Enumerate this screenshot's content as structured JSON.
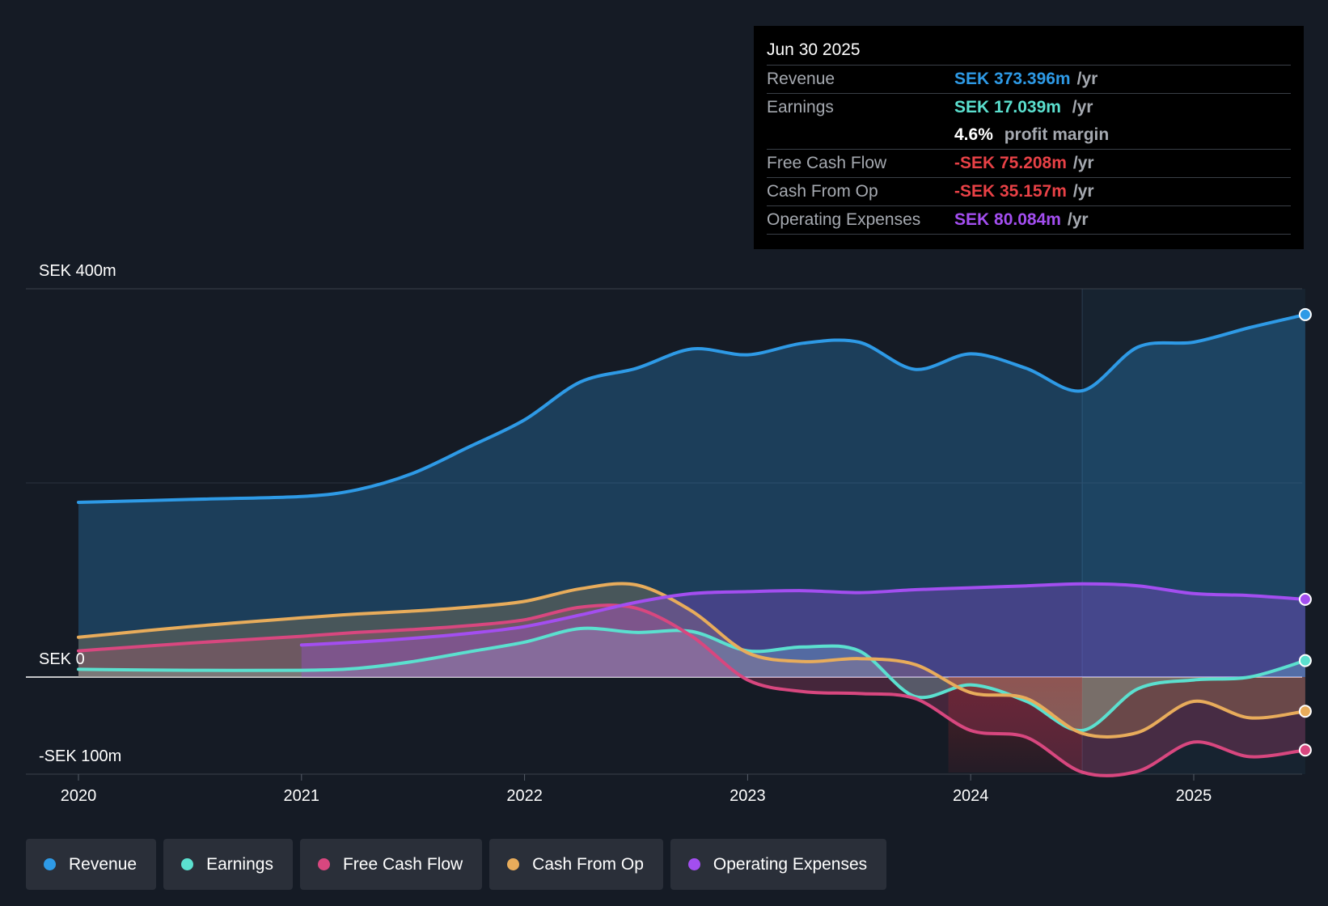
{
  "tooltip": {
    "date": "Jun 30 2025",
    "rows": [
      {
        "label": "Revenue",
        "value": "SEK 373.396m",
        "unit": "/yr",
        "color": "#2e9ae6"
      },
      {
        "label": "Earnings",
        "value": "SEK 17.039m",
        "unit": "/yr",
        "color": "#5be0cf"
      },
      {
        "label": "",
        "value": "4.6%",
        "unit": "profit margin",
        "color": "#ffffff"
      },
      {
        "label": "Free Cash Flow",
        "value": "-SEK 75.208m",
        "unit": "/yr",
        "color": "#e84146"
      },
      {
        "label": "Cash From Op",
        "value": "-SEK 35.157m",
        "unit": "/yr",
        "color": "#e84146"
      },
      {
        "label": "Operating Expenses",
        "value": "SEK 80.084m",
        "unit": "/yr",
        "color": "#a34ef0"
      }
    ]
  },
  "legend": [
    {
      "label": "Revenue",
      "color": "#2e9ae6"
    },
    {
      "label": "Earnings",
      "color": "#5be0cf"
    },
    {
      "label": "Free Cash Flow",
      "color": "#d8477f"
    },
    {
      "label": "Cash From Op",
      "color": "#e8ac5b"
    },
    {
      "label": "Operating Expenses",
      "color": "#a34ef0"
    }
  ],
  "chart_data": {
    "type": "line",
    "title": "",
    "y_unit": "SEK m",
    "ylim": [
      -100,
      400
    ],
    "y_tick_labels": [
      {
        "value": 400,
        "label": "SEK 400m"
      },
      {
        "value": 0,
        "label": "SEK 0"
      },
      {
        "value": -100,
        "label": "-SEK 100m"
      }
    ],
    "x_tick_labels": [
      "2020",
      "2021",
      "2022",
      "2023",
      "2024",
      "2025"
    ],
    "xlim": [
      2019.77,
      2025.5
    ],
    "highlight_start": 2024.5,
    "series": [
      {
        "name": "Revenue",
        "color": "#2e9ae6",
        "x": [
          2020.0,
          2020.5,
          2021.0,
          2021.25,
          2021.5,
          2021.75,
          2022.0,
          2022.25,
          2022.5,
          2022.75,
          2023.0,
          2023.25,
          2023.5,
          2023.75,
          2024.0,
          2024.25,
          2024.5,
          2024.75,
          2025.0,
          2025.25,
          2025.5
        ],
        "y": [
          180,
          183,
          186,
          193,
          210,
          237,
          265,
          304,
          318,
          338,
          332,
          344,
          345,
          317,
          333,
          318,
          295,
          340,
          345,
          360,
          373.4
        ]
      },
      {
        "name": "Earnings",
        "color": "#5be0cf",
        "x": [
          2020.0,
          2020.5,
          2021.0,
          2021.25,
          2021.5,
          2021.75,
          2022.0,
          2022.25,
          2022.5,
          2022.75,
          2023.0,
          2023.25,
          2023.5,
          2023.75,
          2024.0,
          2024.25,
          2024.5,
          2024.75,
          2025.0,
          2025.25,
          2025.5
        ],
        "y": [
          8,
          7,
          7,
          9,
          16,
          26,
          36,
          50,
          46,
          47,
          27,
          31,
          27,
          -20,
          -8,
          -25,
          -55,
          -12,
          -3,
          0,
          17
        ]
      },
      {
        "name": "Free Cash Flow",
        "color": "#d8477f",
        "x": [
          2020.0,
          2020.5,
          2021.0,
          2021.25,
          2021.5,
          2021.75,
          2022.0,
          2022.25,
          2022.5,
          2022.75,
          2023.0,
          2023.25,
          2023.5,
          2023.75,
          2024.0,
          2024.25,
          2024.5,
          2024.75,
          2025.0,
          2025.25,
          2025.5
        ],
        "y": [
          27,
          35,
          42,
          46,
          49,
          53,
          59,
          72,
          71,
          42,
          -3,
          -15,
          -17,
          -22,
          -55,
          -62,
          -98,
          -97,
          -67,
          -82,
          -75.2
        ]
      },
      {
        "name": "Cash From Op",
        "color": "#e8ac5b",
        "x": [
          2020.0,
          2020.5,
          2021.0,
          2021.25,
          2021.5,
          2021.75,
          2022.0,
          2022.25,
          2022.5,
          2022.75,
          2023.0,
          2023.25,
          2023.5,
          2023.75,
          2024.0,
          2024.25,
          2024.5,
          2024.75,
          2025.0,
          2025.25,
          2025.5
        ],
        "y": [
          41,
          52,
          61,
          65,
          68,
          72,
          78,
          91,
          95,
          68,
          25,
          16,
          19,
          13,
          -16,
          -22,
          -58,
          -57,
          -25,
          -42,
          -35.2
        ]
      },
      {
        "name": "Operating Expenses",
        "color": "#a34ef0",
        "x": [
          2021.0,
          2021.25,
          2021.5,
          2021.75,
          2022.0,
          2022.25,
          2022.5,
          2022.75,
          2023.0,
          2023.25,
          2023.5,
          2023.75,
          2024.0,
          2024.25,
          2024.5,
          2024.75,
          2025.0,
          2025.25,
          2025.5
        ],
        "y": [
          33,
          36,
          40,
          45,
          52,
          64,
          77,
          86,
          88,
          89,
          87,
          90,
          92,
          94,
          96,
          94,
          86,
          84,
          80.1
        ]
      }
    ],
    "grid": true,
    "legend_position": "bottom"
  }
}
